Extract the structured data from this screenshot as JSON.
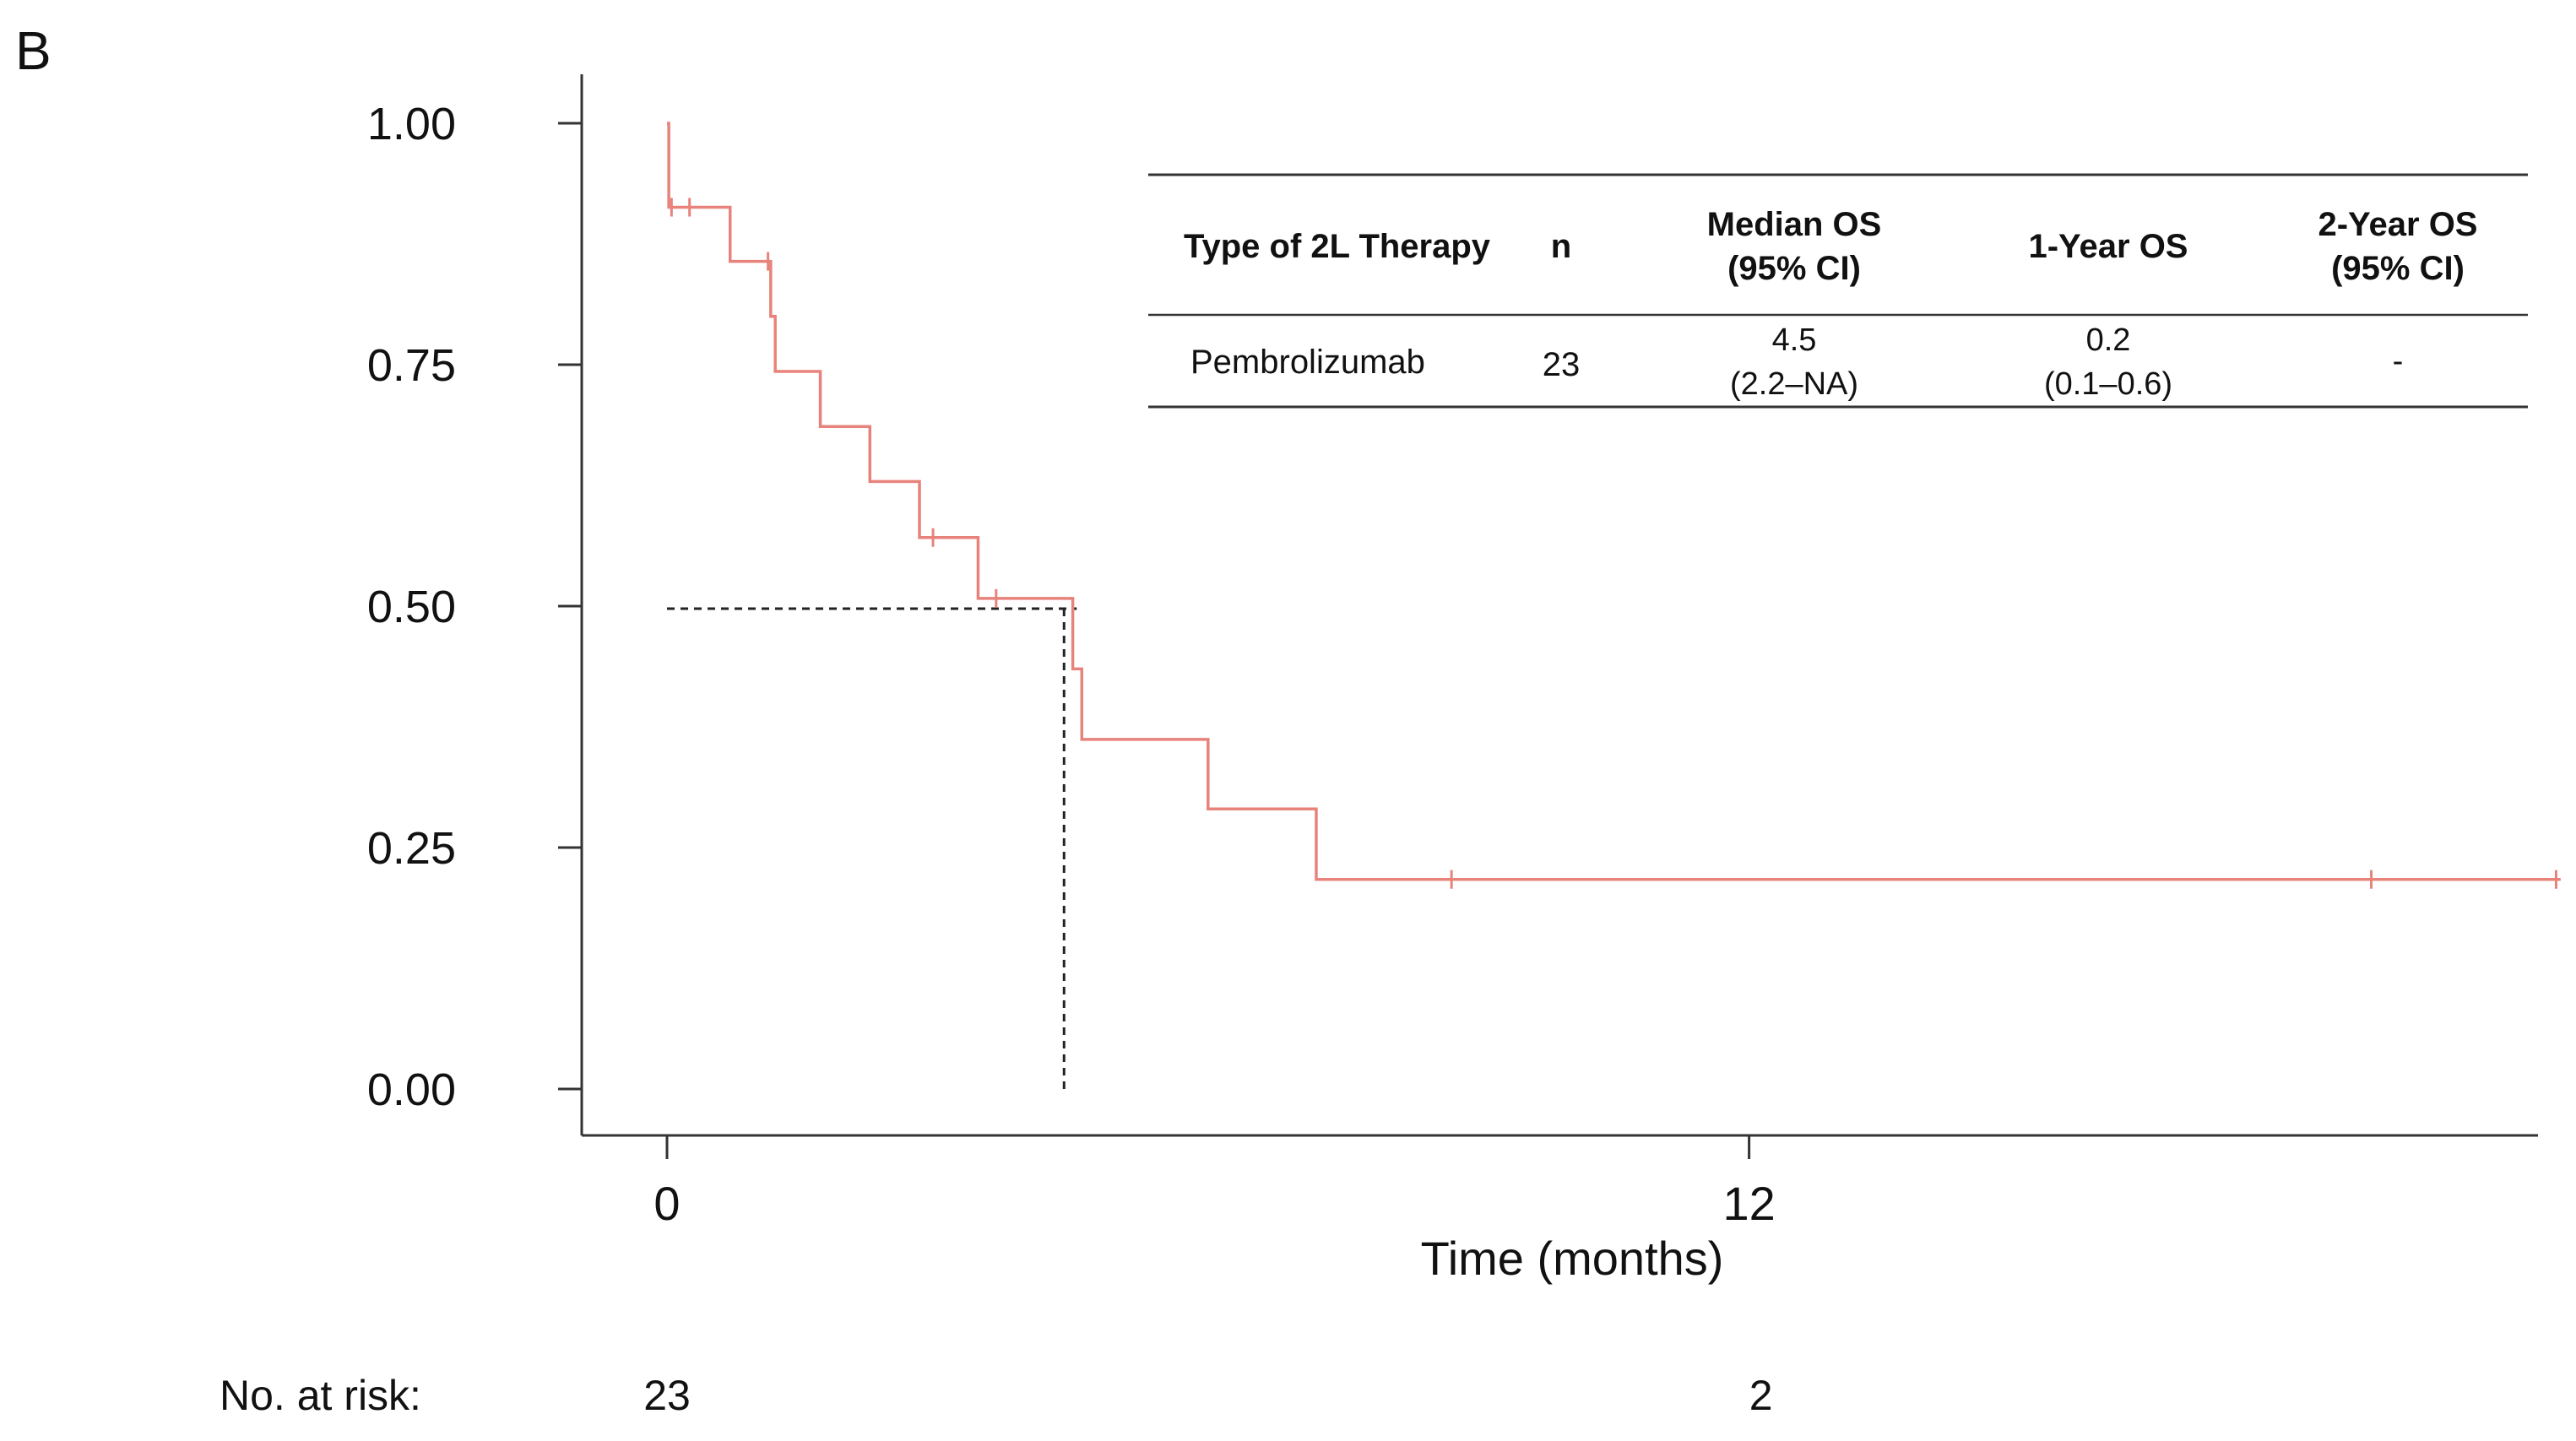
{
  "panel_label": "B",
  "chart_data": {
    "type": "line",
    "subtype": "kaplan-meier",
    "xlabel": "Time (months)",
    "ylabel": "",
    "xlim": [
      -1,
      21
    ],
    "ylim": [
      -0.05,
      1.05
    ],
    "x_ticks": [
      0,
      12
    ],
    "x_tick_labels": [
      "0",
      "12"
    ],
    "y_ticks": [
      0.0,
      0.25,
      0.5,
      0.75,
      1.0
    ],
    "y_tick_labels": [
      "0.00",
      "0.25",
      "0.50",
      "0.75",
      "1.00"
    ],
    "series": [
      {
        "name": "Pembrolizumab",
        "color": "#e8837c",
        "steps": [
          {
            "x": 0.0,
            "y": 1.0
          },
          {
            "x": 0.02,
            "y": 0.913
          },
          {
            "x": 0.7,
            "y": 0.857
          },
          {
            "x": 1.15,
            "y": 0.8
          },
          {
            "x": 1.2,
            "y": 0.743
          },
          {
            "x": 1.7,
            "y": 0.686
          },
          {
            "x": 2.25,
            "y": 0.629
          },
          {
            "x": 2.8,
            "y": 0.571
          },
          {
            "x": 3.45,
            "y": 0.508
          },
          {
            "x": 4.5,
            "y": 0.435
          },
          {
            "x": 4.6,
            "y": 0.362
          },
          {
            "x": 6.0,
            "y": 0.29
          },
          {
            "x": 7.2,
            "y": 0.217
          },
          {
            "x": 21.0,
            "y": 0.217
          }
        ],
        "censor_marks": [
          {
            "x": 0.05,
            "y": 0.913
          },
          {
            "x": 0.25,
            "y": 0.913
          },
          {
            "x": 1.12,
            "y": 0.857
          },
          {
            "x": 2.95,
            "y": 0.571
          },
          {
            "x": 3.65,
            "y": 0.508
          },
          {
            "x": 8.7,
            "y": 0.217
          },
          {
            "x": 18.9,
            "y": 0.217
          },
          {
            "x": 20.95,
            "y": 0.217
          }
        ]
      }
    ],
    "median_reference": {
      "x": 4.45,
      "y": 0.5
    },
    "risk_table": {
      "label": "No. at risk:",
      "times": [
        0,
        12
      ],
      "counts": [
        "23",
        "2"
      ]
    },
    "summary_table": {
      "headers": [
        [
          "Type of 2L Therapy"
        ],
        [
          "n"
        ],
        [
          "Median OS",
          "(95% CI)"
        ],
        [
          "1-Year OS"
        ],
        [
          "2-Year OS",
          "(95% CI)"
        ]
      ],
      "rows": [
        {
          "therapy": "Pembrolizumab",
          "n": "23",
          "median_os": "4.5",
          "median_os_ci": "(2.2–NA)",
          "one_year_os": "0.2",
          "one_year_os_ci": "(0.1–0.6)",
          "two_year_os": "-"
        }
      ]
    }
  }
}
